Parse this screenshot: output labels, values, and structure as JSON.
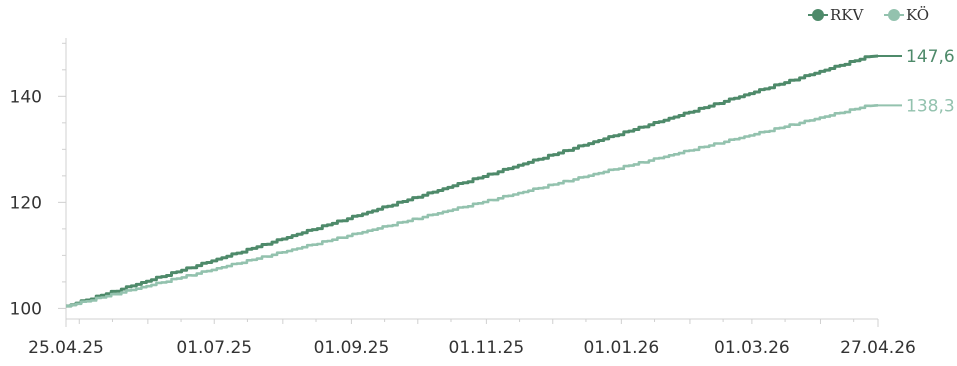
{
  "chart_data": {
    "type": "line",
    "title": "",
    "xlabel": "",
    "ylabel": "",
    "x_start": "25.04.25",
    "x_end": "27.04.26",
    "x_tick_labels": [
      "25.04.25",
      "01.07.25",
      "01.09.25",
      "01.11.25",
      "01.01.26",
      "01.03.26",
      "27.04.26"
    ],
    "ylim": [
      98,
      151
    ],
    "y_ticks": [
      100,
      120,
      140
    ],
    "y_tick_labels": [
      "100",
      "120",
      "140"
    ],
    "grid": false,
    "legend_placement": "top-right",
    "series": [
      {
        "name": "RKV",
        "color": "#4e8a6a",
        "start": 100.4,
        "end": 147.6,
        "end_label": "147,6"
      },
      {
        "name": "KÖ",
        "color": "#93c2ae",
        "start": 100.4,
        "end": 138.3,
        "end_label": "138,3"
      }
    ]
  }
}
